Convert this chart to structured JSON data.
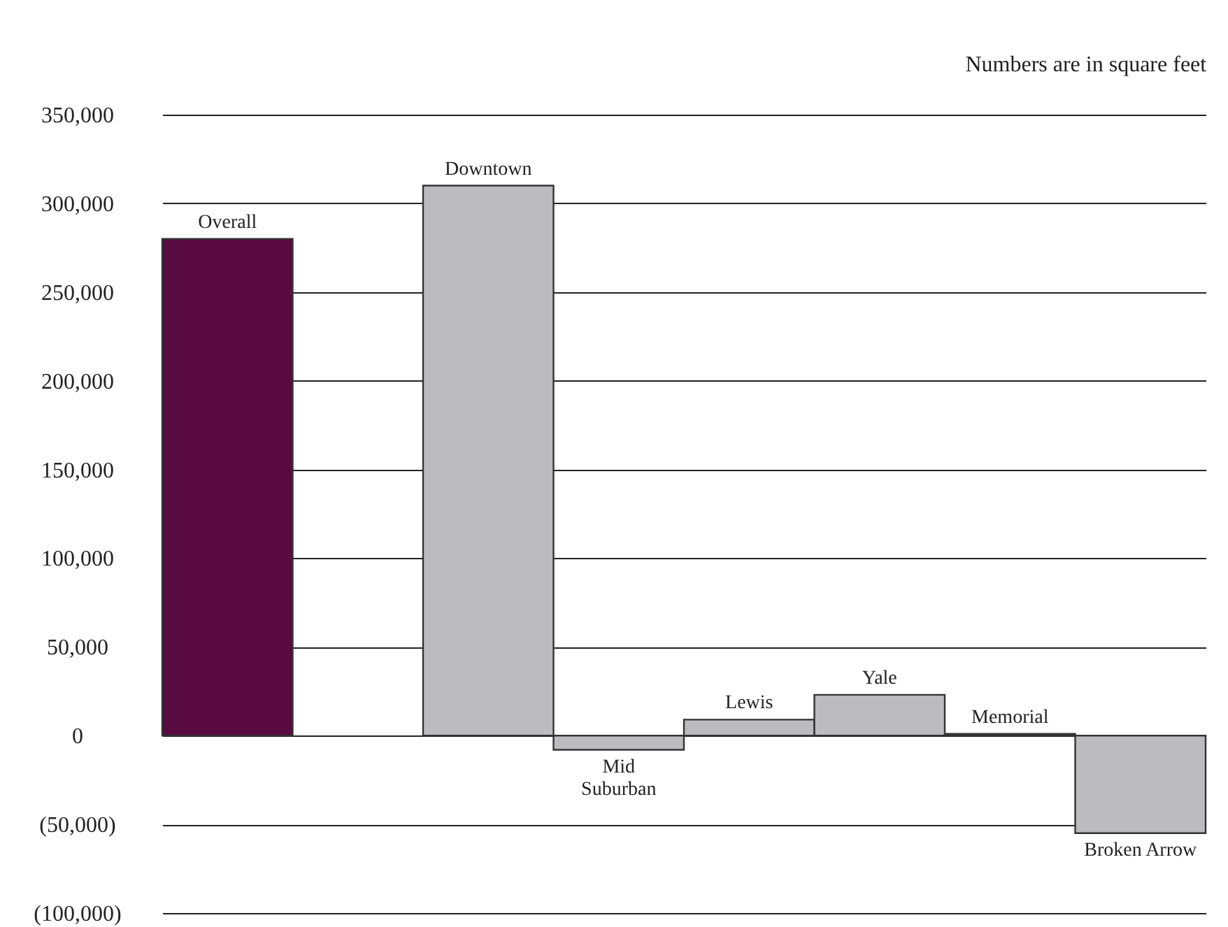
{
  "chart_data": {
    "type": "bar",
    "annotations": [
      "Numbers are in square feet"
    ],
    "categories": [
      "Overall",
      null,
      "Downtown",
      "Mid\nSuburban",
      "Lewis",
      "Yale",
      "Memorial",
      "Broken Arrow"
    ],
    "values": [
      280000,
      null,
      310000,
      -8000,
      9000,
      23000,
      1000,
      -55000
    ],
    "colors": [
      "#580a41",
      null,
      "#bcbcbf",
      "#bcbcbf",
      "#bcbcbf",
      "#bcbcbf",
      "#bcbcbf",
      "#bcbcbf"
    ],
    "ylim": [
      -100000,
      350000
    ],
    "yticks": [
      {
        "value": -100000,
        "label": "(100,000)"
      },
      {
        "value": -50000,
        "label": "(50,000)"
      },
      0,
      {
        "value": 50000,
        "label": "50,000"
      },
      {
        "value": 100000,
        "label": "100,000"
      },
      {
        "value": 150000,
        "label": "150,000"
      },
      {
        "value": 200000,
        "label": "200,000"
      },
      {
        "value": 250000,
        "label": "250,000"
      },
      {
        "value": 300000,
        "label": "300,000"
      },
      {
        "value": 350000,
        "label": "350,000"
      }
    ],
    "grid": "y"
  }
}
